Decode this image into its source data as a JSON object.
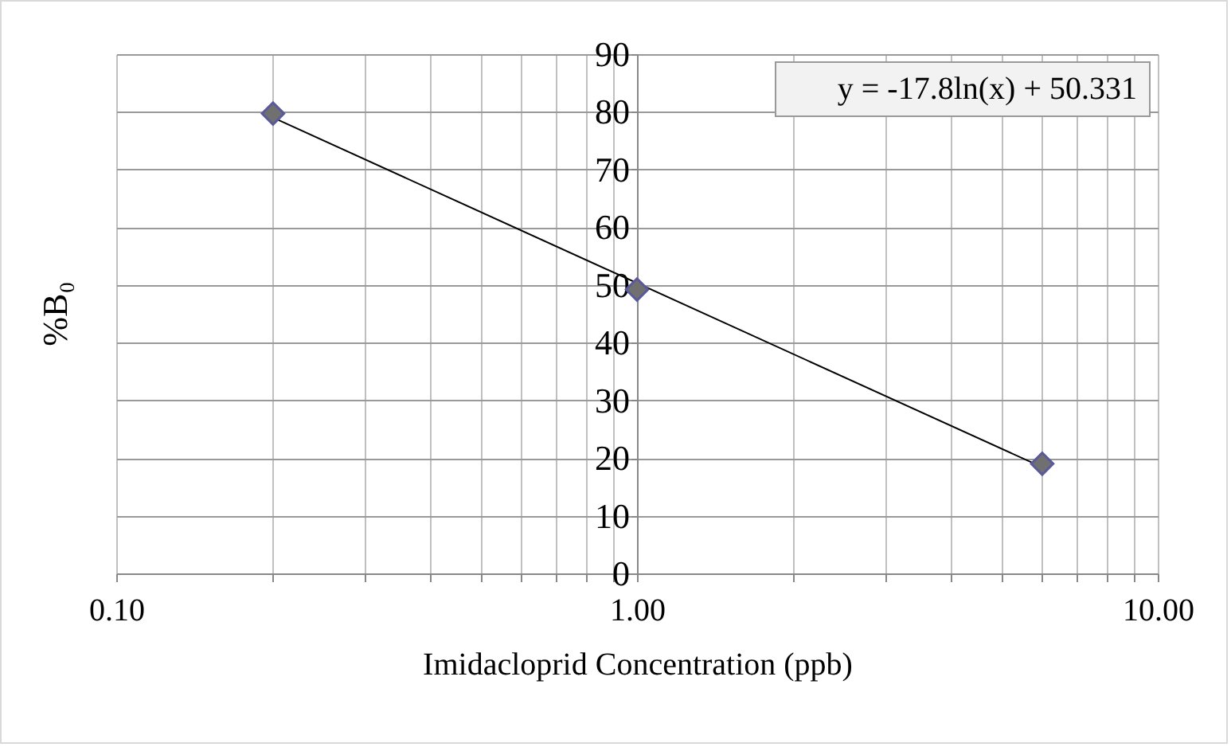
{
  "chart_data": {
    "type": "scatter",
    "xlabel": "Imidacloprid Concentration (ppb)",
    "ylabel": "%B₀",
    "log": "x",
    "grid": true,
    "xlim": [
      0.1,
      10
    ],
    "xticks": [
      {
        "value": 0.1,
        "label": "0.10"
      },
      {
        "value": 0.2,
        "label": null
      },
      {
        "value": 0.3,
        "label": null
      },
      {
        "value": 0.4,
        "label": null
      },
      {
        "value": 0.5,
        "label": null
      },
      {
        "value": 0.6,
        "label": null
      },
      {
        "value": 0.7,
        "label": null
      },
      {
        "value": 0.8,
        "label": null
      },
      {
        "value": 0.9,
        "label": null
      },
      {
        "value": 1,
        "label": "1.00"
      },
      {
        "value": 2,
        "label": null
      },
      {
        "value": 3,
        "label": null
      },
      {
        "value": 4,
        "label": null
      },
      {
        "value": 5,
        "label": null
      },
      {
        "value": 6,
        "label": null
      },
      {
        "value": 7,
        "label": null
      },
      {
        "value": 8,
        "label": null
      },
      {
        "value": 9,
        "label": null
      },
      {
        "value": 10,
        "label": "10.00"
      }
    ],
    "ylim": [
      0,
      90
    ],
    "yticks": [
      0,
      10,
      20,
      30,
      40,
      50,
      60,
      70,
      80,
      90
    ],
    "series": [
      {
        "type": "scatter",
        "color": "#707070",
        "marker": "diamond",
        "x": [
          0.2,
          1,
          6
        ],
        "values": [
          79.7,
          49.2,
          19
        ]
      },
      {
        "type": "line",
        "color": "#000000",
        "marker": "none",
        "x": [
          0.2,
          6
        ],
        "values": [
          79,
          18.4
        ]
      }
    ],
    "annotations": [
      "y = -17.8ln(x) + 50.331"
    ]
  }
}
